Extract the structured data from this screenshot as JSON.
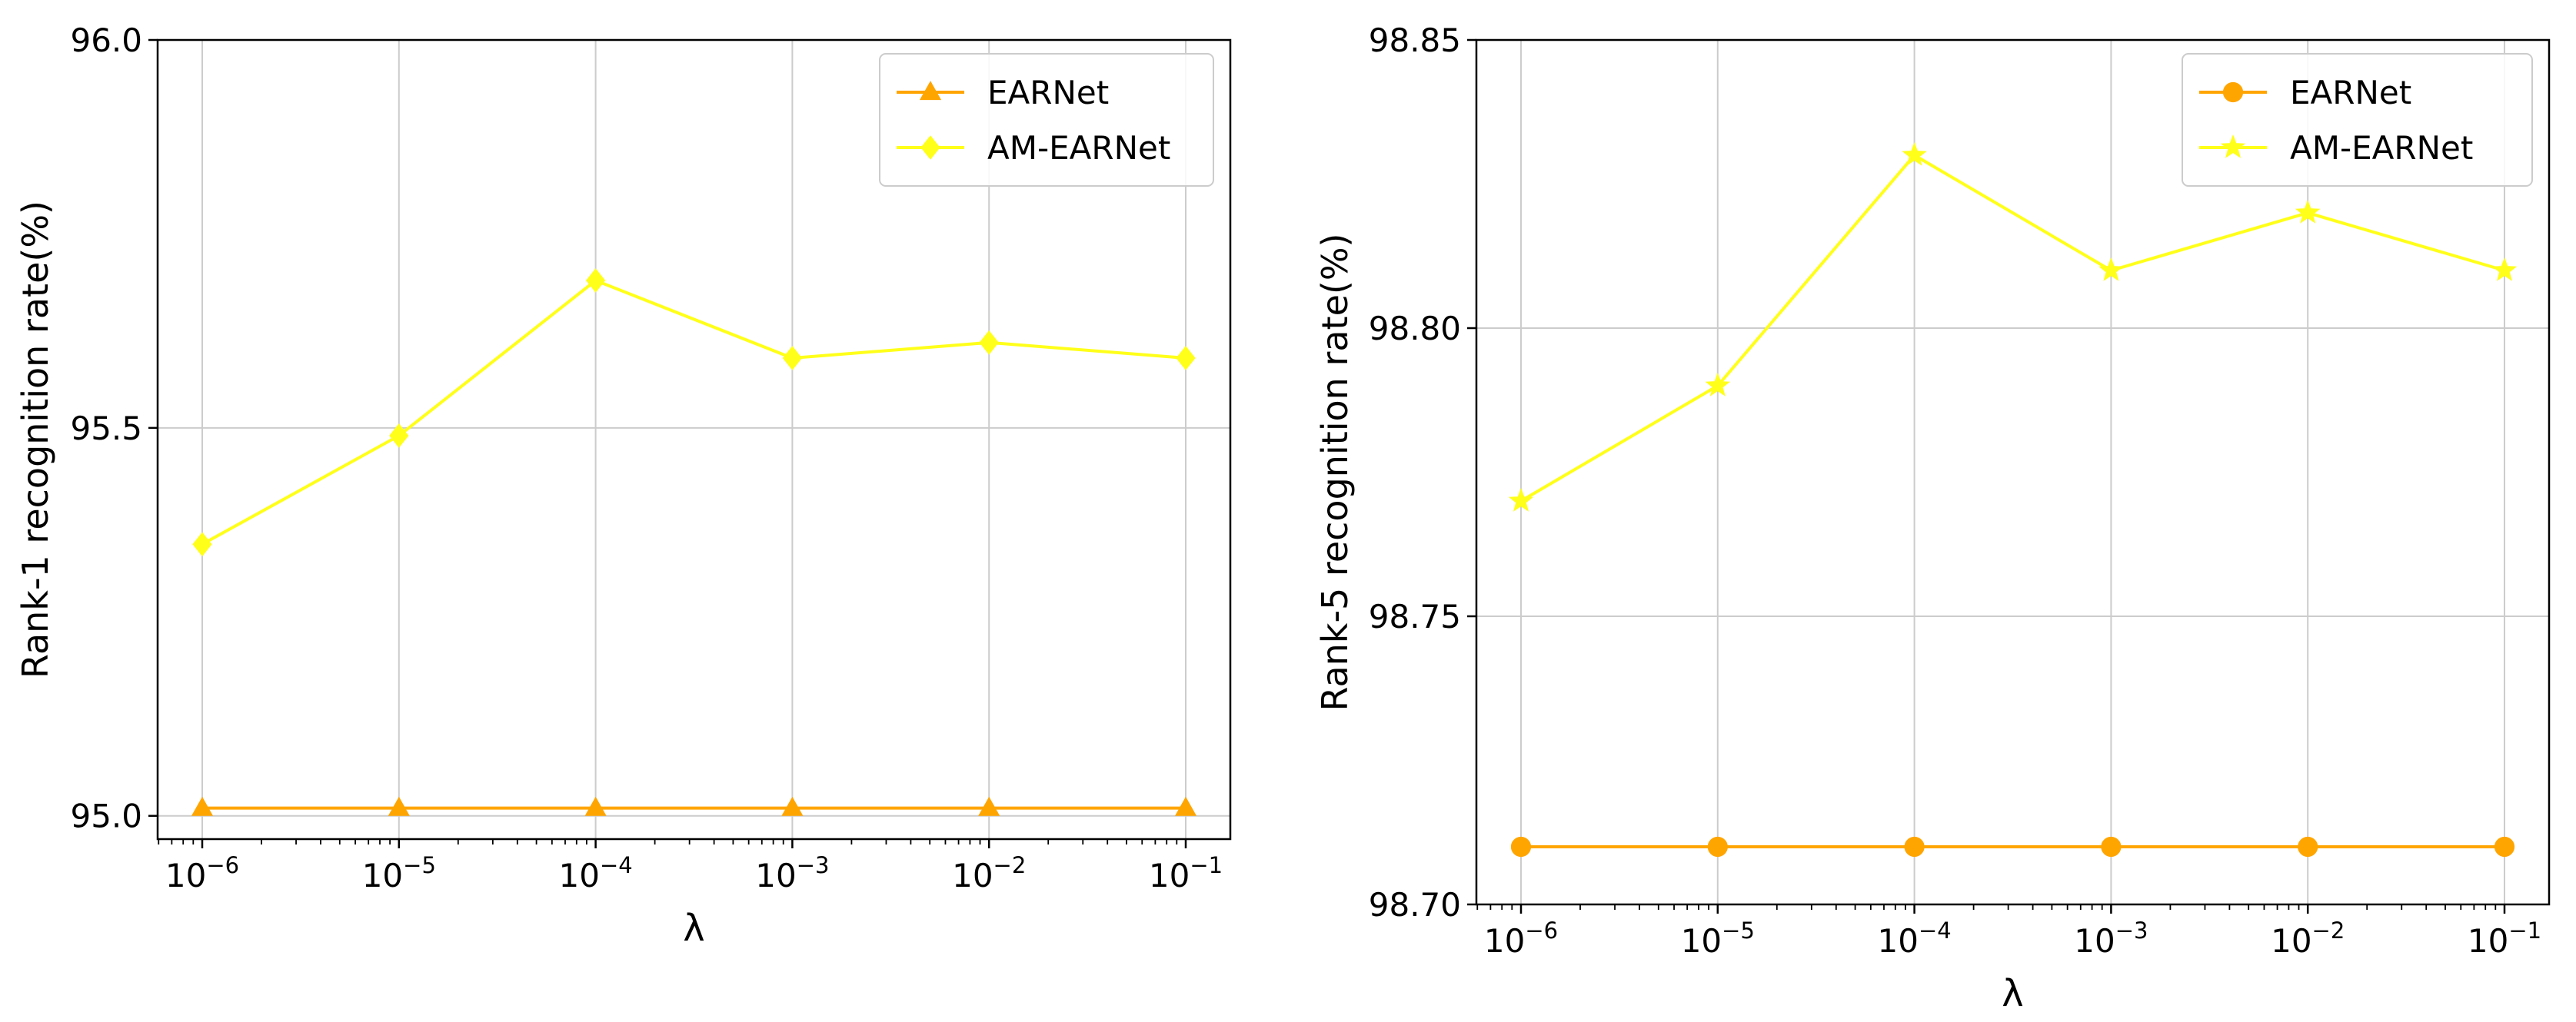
{
  "chart_data": [
    {
      "type": "line",
      "x": [
        "10^-6",
        "10^-5",
        "10^-4",
        "10^-3",
        "10^-2",
        "10^-1"
      ],
      "x_ticks": [
        {
          "base": "10",
          "exp": "−6"
        },
        {
          "base": "10",
          "exp": "−5"
        },
        {
          "base": "10",
          "exp": "−4"
        },
        {
          "base": "10",
          "exp": "−3"
        },
        {
          "base": "10",
          "exp": "−2"
        },
        {
          "base": "10",
          "exp": "−1"
        }
      ],
      "x_scale": "log",
      "xlabel": "λ",
      "ylabel": "Rank-1 recognition rate(%)",
      "ylim": [
        94.97,
        96.0
      ],
      "yticks": [
        95.0,
        95.5,
        96.0
      ],
      "ytick_labels": [
        "95.0",
        "95.5",
        "96.0"
      ],
      "grid": true,
      "legend": "top-right",
      "series": [
        {
          "name": "EARNet",
          "marker": "triangle",
          "color": "#FFA500",
          "values": [
            95.01,
            95.01,
            95.01,
            95.01,
            95.01,
            95.01
          ]
        },
        {
          "name": "AM-EARNet",
          "marker": "diamond",
          "color": "#FFFF1A",
          "values": [
            95.35,
            95.49,
            95.69,
            95.59,
            95.61,
            95.59
          ]
        }
      ]
    },
    {
      "type": "line",
      "x": [
        "10^-6",
        "10^-5",
        "10^-4",
        "10^-3",
        "10^-2",
        "10^-1"
      ],
      "x_ticks": [
        {
          "base": "10",
          "exp": "−6"
        },
        {
          "base": "10",
          "exp": "−5"
        },
        {
          "base": "10",
          "exp": "−4"
        },
        {
          "base": "10",
          "exp": "−3"
        },
        {
          "base": "10",
          "exp": "−2"
        },
        {
          "base": "10",
          "exp": "−1"
        }
      ],
      "x_scale": "log",
      "xlabel": "λ",
      "ylabel": "Rank-5 recognition rate(%)",
      "ylim": [
        98.7,
        98.85
      ],
      "yticks": [
        98.7,
        98.75,
        98.8,
        98.85
      ],
      "ytick_labels": [
        "98.70",
        "98.75",
        "98.80",
        "98.85"
      ],
      "grid": true,
      "legend": "top-right",
      "series": [
        {
          "name": "EARNet",
          "marker": "circle",
          "color": "#FFA500",
          "values": [
            98.71,
            98.71,
            98.71,
            98.71,
            98.71,
            98.71
          ]
        },
        {
          "name": "AM-EARNet",
          "marker": "star",
          "color": "#FFFF1A",
          "values": [
            98.77,
            98.79,
            98.83,
            98.81,
            98.82,
            98.81
          ]
        }
      ]
    }
  ]
}
